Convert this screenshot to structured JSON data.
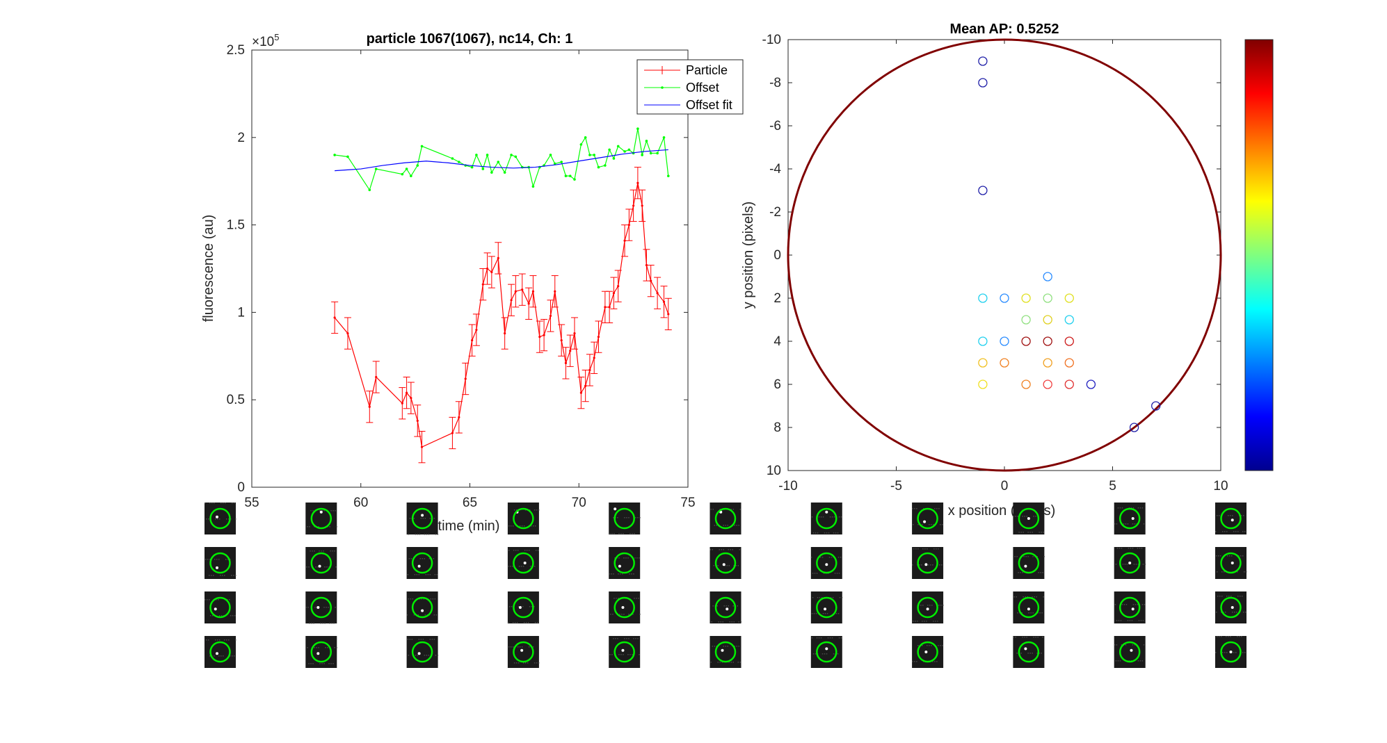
{
  "colors": {
    "particle": "#ff0000",
    "offset": "#00ff00",
    "offset_fit": "#0000ff",
    "boundary": "#800000",
    "thumb_circle": "#00ee00"
  },
  "chart_data": [
    {
      "type": "line",
      "title": "particle 1067(1067), nc14, Ch: 1",
      "xlabel": "time (min)",
      "ylabel": "fluorescence (au)",
      "xlim": [
        55,
        75
      ],
      "ylim": [
        0,
        250000
      ],
      "y_exponent_label": "×10",
      "y_exponent_power": "5",
      "xticks": [
        "55",
        "60",
        "65",
        "70",
        "75"
      ],
      "yticks": [
        "0",
        "0.5",
        "1",
        "1.5",
        "2",
        "2.5"
      ],
      "legend_position": "top-right",
      "series": [
        {
          "name": "Particle",
          "style": "errorbar",
          "x": [
            58.8,
            59.4,
            60.4,
            60.7,
            61.9,
            62.1,
            62.3,
            62.6,
            62.8,
            64.2,
            64.5,
            64.8,
            65.1,
            65.3,
            65.6,
            65.8,
            66.0,
            66.3,
            66.6,
            66.9,
            67.1,
            67.4,
            67.7,
            67.9,
            68.2,
            68.4,
            68.7,
            68.9,
            69.2,
            69.4,
            69.6,
            69.8,
            70.1,
            70.3,
            70.5,
            70.7,
            70.9,
            71.2,
            71.4,
            71.6,
            71.8,
            72.1,
            72.3,
            72.5,
            72.7,
            72.9,
            73.1,
            73.3,
            73.6,
            73.9,
            74.1
          ],
          "y": [
            97000,
            88000,
            46000,
            63000,
            48000,
            54000,
            51000,
            38000,
            23000,
            31000,
            40000,
            62000,
            84000,
            90000,
            116000,
            125000,
            123000,
            131000,
            88000,
            107000,
            112000,
            113000,
            105000,
            112000,
            86000,
            87000,
            98000,
            112000,
            84000,
            71000,
            78000,
            88000,
            54000,
            58000,
            67000,
            74000,
            86000,
            103000,
            103000,
            111000,
            115000,
            141000,
            150000,
            161000,
            174000,
            161000,
            127000,
            118000,
            111000,
            106000,
            99000
          ],
          "error": [
            9000,
            9000,
            9000,
            9000,
            9000,
            9000,
            9000,
            9000,
            9000,
            9000,
            9000,
            9000,
            9000,
            9000,
            9000,
            9000,
            9000,
            9000,
            9000,
            9000,
            9000,
            9000,
            9000,
            9000,
            9000,
            9000,
            9000,
            9000,
            9000,
            9000,
            9000,
            9000,
            9000,
            9000,
            9000,
            9000,
            9000,
            9000,
            9000,
            9000,
            9000,
            9000,
            9000,
            9000,
            9000,
            9000,
            9000,
            9000,
            9000,
            9000,
            9000
          ]
        },
        {
          "name": "Offset",
          "style": "line-marker",
          "x": [
            58.8,
            59.4,
            60.4,
            60.7,
            61.9,
            62.1,
            62.3,
            62.6,
            62.8,
            64.2,
            64.5,
            64.8,
            65.1,
            65.3,
            65.6,
            65.8,
            66.0,
            66.3,
            66.6,
            66.9,
            67.1,
            67.4,
            67.7,
            67.9,
            68.2,
            68.4,
            68.7,
            68.9,
            69.2,
            69.4,
            69.6,
            69.8,
            70.1,
            70.3,
            70.5,
            70.7,
            70.9,
            71.2,
            71.4,
            71.6,
            71.8,
            72.1,
            72.3,
            72.5,
            72.7,
            72.9,
            73.1,
            73.3,
            73.6,
            73.9,
            74.1
          ],
          "y": [
            190000,
            189000,
            170000,
            182000,
            179000,
            182000,
            178000,
            184000,
            195000,
            188000,
            186000,
            184000,
            183000,
            190000,
            182000,
            190000,
            180000,
            186000,
            180000,
            190000,
            189000,
            183000,
            183000,
            172000,
            183000,
            184000,
            190000,
            185000,
            186000,
            178000,
            178000,
            176000,
            196000,
            200000,
            190000,
            190000,
            183000,
            184000,
            193000,
            188000,
            195000,
            192000,
            193000,
            191000,
            205000,
            190000,
            198000,
            191000,
            191000,
            200000,
            178000
          ]
        },
        {
          "name": "Offset fit",
          "style": "line",
          "x": [
            58.8,
            60,
            61,
            62,
            63,
            64,
            65,
            66,
            67,
            68,
            69,
            70,
            71,
            72,
            73,
            74.1
          ],
          "y": [
            181000,
            182000,
            184000,
            185500,
            186500,
            185500,
            184000,
            183000,
            182500,
            183000,
            184500,
            186500,
            188500,
            190500,
            192000,
            193000
          ]
        }
      ]
    },
    {
      "type": "scatter",
      "title": "Mean AP: 0.5252",
      "xlabel": "x position (pixels)",
      "ylabel": "y position (pixels)",
      "xlim": [
        -10,
        10
      ],
      "ylim": [
        -10,
        10
      ],
      "y_reversed": true,
      "xticks": [
        "-10",
        "-5",
        "0",
        "5",
        "10"
      ],
      "yticks": [
        "-10",
        "-8",
        "-6",
        "-4",
        "-2",
        "0",
        "2",
        "4",
        "6",
        "8",
        "10"
      ],
      "boundary_circle_radius": 10,
      "colorbar": "jet",
      "points": [
        {
          "x": -1,
          "y": -9,
          "color": "#1f1fa8"
        },
        {
          "x": -1,
          "y": -8,
          "color": "#1f1fa8"
        },
        {
          "x": -1,
          "y": -3,
          "color": "#1f1fa8"
        },
        {
          "x": 2,
          "y": 1,
          "color": "#2a8cff"
        },
        {
          "x": -1,
          "y": 2,
          "color": "#20d0ee"
        },
        {
          "x": 0,
          "y": 2,
          "color": "#2a8cff"
        },
        {
          "x": 1,
          "y": 2,
          "color": "#e0e020"
        },
        {
          "x": 2,
          "y": 2,
          "color": "#90e080"
        },
        {
          "x": 3,
          "y": 2,
          "color": "#e0e020"
        },
        {
          "x": 1,
          "y": 3,
          "color": "#90e080"
        },
        {
          "x": 2,
          "y": 3,
          "color": "#e0d020"
        },
        {
          "x": 3,
          "y": 3,
          "color": "#20d0ee"
        },
        {
          "x": -1,
          "y": 4,
          "color": "#20d0ee"
        },
        {
          "x": 0,
          "y": 4,
          "color": "#2a8cff"
        },
        {
          "x": 1,
          "y": 4,
          "color": "#a01010"
        },
        {
          "x": 2,
          "y": 4,
          "color": "#a01010"
        },
        {
          "x": 3,
          "y": 4,
          "color": "#cc1a1a"
        },
        {
          "x": -1,
          "y": 5,
          "color": "#f0c020"
        },
        {
          "x": 0,
          "y": 5,
          "color": "#f08020"
        },
        {
          "x": 2,
          "y": 5,
          "color": "#f0a020"
        },
        {
          "x": 3,
          "y": 5,
          "color": "#f07020"
        },
        {
          "x": -1,
          "y": 6,
          "color": "#f0e020"
        },
        {
          "x": 1,
          "y": 6,
          "color": "#f08020"
        },
        {
          "x": 2,
          "y": 6,
          "color": "#f04040"
        },
        {
          "x": 3,
          "y": 6,
          "color": "#e03030"
        },
        {
          "x": 4,
          "y": 6,
          "color": "#2020c0"
        },
        {
          "x": 7,
          "y": 7,
          "color": "#1f1fa8"
        },
        {
          "x": 6,
          "y": 8,
          "color": "#1f1fa8"
        }
      ]
    }
  ],
  "thumbnails": {
    "rows": 4,
    "cols": 11,
    "spots": [
      [
        [
          0.4,
          0.45
        ],
        [
          0.5,
          0.3
        ],
        [
          0.5,
          0.4
        ],
        [
          0.3,
          0.3
        ],
        [
          0.2,
          0.2
        ],
        [
          0.35,
          0.3
        ],
        [
          0.5,
          0.3
        ],
        [
          0.4,
          0.6
        ],
        [
          0.5,
          0.5
        ],
        [
          0.6,
          0.5
        ],
        [
          0.55,
          0.55
        ]
      ],
      [
        [
          0.4,
          0.65
        ],
        [
          0.45,
          0.6
        ],
        [
          0.4,
          0.6
        ],
        [
          0.55,
          0.5
        ],
        [
          0.35,
          0.6
        ],
        [
          0.45,
          0.55
        ],
        [
          0.5,
          0.55
        ],
        [
          0.45,
          0.55
        ],
        [
          0.4,
          0.6
        ],
        [
          0.5,
          0.5
        ],
        [
          0.55,
          0.5
        ]
      ],
      [
        [
          0.35,
          0.55
        ],
        [
          0.4,
          0.5
        ],
        [
          0.5,
          0.6
        ],
        [
          0.4,
          0.5
        ],
        [
          0.45,
          0.5
        ],
        [
          0.55,
          0.55
        ],
        [
          0.45,
          0.55
        ],
        [
          0.5,
          0.55
        ],
        [
          0.5,
          0.55
        ],
        [
          0.6,
          0.55
        ],
        [
          0.55,
          0.5
        ]
      ],
      [
        [
          0.4,
          0.55
        ],
        [
          0.4,
          0.55
        ],
        [
          0.4,
          0.55
        ],
        [
          0.45,
          0.45
        ],
        [
          0.45,
          0.45
        ],
        [
          0.4,
          0.45
        ],
        [
          0.5,
          0.4
        ],
        [
          0.45,
          0.5
        ],
        [
          0.4,
          0.4
        ],
        [
          0.55,
          0.45
        ],
        [
          0.5,
          0.5
        ]
      ]
    ]
  }
}
